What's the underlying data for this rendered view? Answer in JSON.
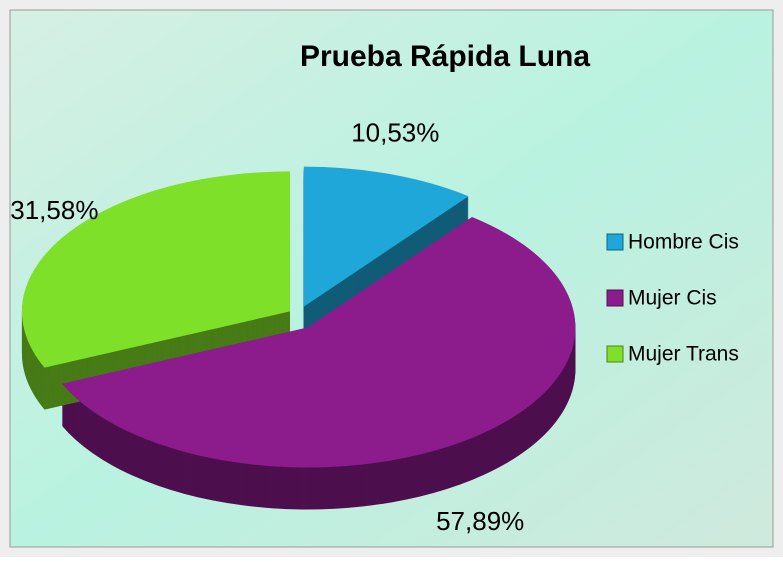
{
  "chart_data": {
    "type": "pie",
    "title": "Prueba Rápida Luna",
    "categories": [
      "Hombre Cis",
      "Mujer Cis",
      "Mujer Trans"
    ],
    "values": [
      10.53,
      57.89,
      31.58
    ],
    "value_labels": [
      "10,53%",
      "57,89%",
      "31,58%"
    ],
    "colors": [
      "#1ea7d8",
      "#8c1b8c",
      "#7fe02a"
    ],
    "legend": "right"
  }
}
